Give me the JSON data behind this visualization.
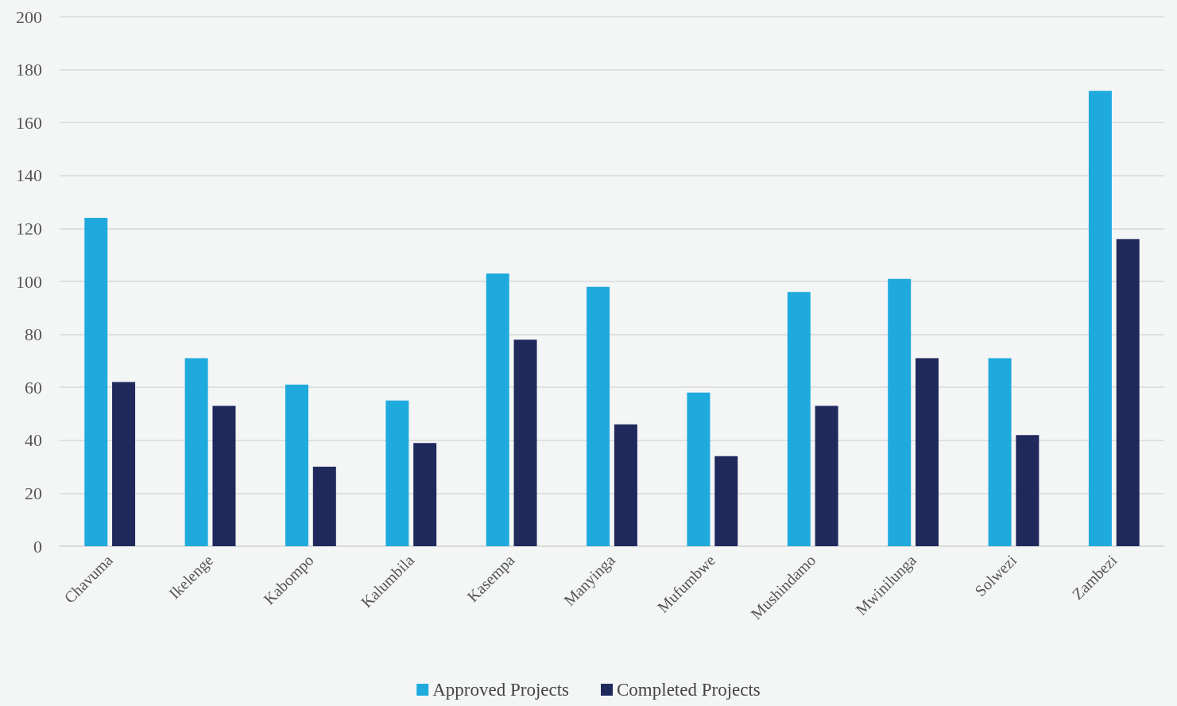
{
  "chart_data": {
    "type": "bar",
    "categories": [
      "Chavuma",
      "Ikelenge",
      "Kabompo",
      "Kalumbila",
      "Kasempa",
      "Manyinga",
      "Mufumbwe",
      "Mushindamo",
      "Mwinilunga",
      "Solwezi",
      "Zambezi"
    ],
    "series": [
      {
        "name": "Approved Projects",
        "color": "#1faade",
        "values": [
          124,
          71,
          61,
          55,
          103,
          98,
          58,
          96,
          101,
          71,
          172
        ]
      },
      {
        "name": "Completed Projects",
        "color": "#1f295c",
        "values": [
          62,
          53,
          30,
          39,
          78,
          46,
          34,
          53,
          71,
          42,
          116
        ]
      }
    ],
    "ylim": [
      0,
      200
    ],
    "yticks": [
      0,
      20,
      40,
      60,
      80,
      100,
      120,
      140,
      160,
      180,
      200
    ],
    "grid": "y",
    "legend": "bottom"
  }
}
